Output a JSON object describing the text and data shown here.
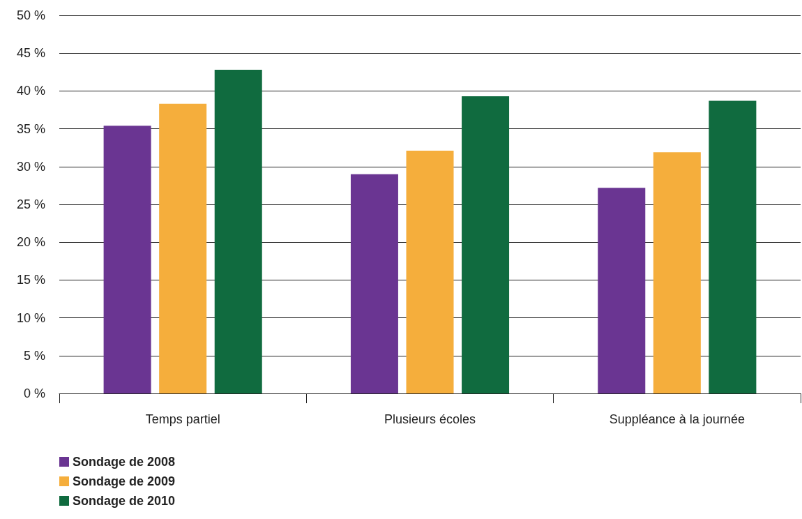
{
  "chart_data": {
    "type": "bar",
    "categories": [
      "Temps partiel",
      "Plusieurs écoles",
      "Suppléance à la journée"
    ],
    "series": [
      {
        "name": "Sondage de 2008",
        "color": "#6a3592",
        "values": [
          35.4,
          29.0,
          27.2
        ]
      },
      {
        "name": "Sondage de 2009",
        "color": "#f5ae3c",
        "values": [
          38.3,
          32.1,
          31.9
        ]
      },
      {
        "name": "Sondage de 2010",
        "color": "#106b3f",
        "values": [
          42.8,
          39.3,
          38.7
        ]
      }
    ],
    "ylim": [
      0,
      50
    ],
    "yticks": [
      {
        "value": 0,
        "label": "0 %"
      },
      {
        "value": 5,
        "label": "5 %"
      },
      {
        "value": 10,
        "label": "10 %"
      },
      {
        "value": 15,
        "label": "15 %"
      },
      {
        "value": 20,
        "label": "20 %"
      },
      {
        "value": 25,
        "label": "25 %"
      },
      {
        "value": 30,
        "label": "30 %"
      },
      {
        "value": 35,
        "label": "35 %"
      },
      {
        "value": 40,
        "label": "40 %"
      },
      {
        "value": 45,
        "label": "45 %"
      },
      {
        "value": 50,
        "label": "50 %"
      }
    ],
    "grid": "y",
    "legend": "bottom left"
  }
}
